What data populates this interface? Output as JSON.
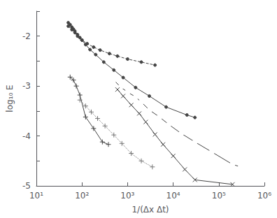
{
  "chart_data": {
    "type": "line",
    "xlabel": "1/(Δx Δt)",
    "ylabel": "log₁₀ E",
    "log": "x",
    "grid": false,
    "xlim": [
      10,
      1000000
    ],
    "xticks": [
      {
        "value": 10,
        "label": "10¹"
      },
      {
        "value": 100,
        "label": "10²"
      },
      {
        "value": 1000,
        "label": "10³"
      },
      {
        "value": 10000,
        "label": "10⁴"
      },
      {
        "value": 100000,
        "label": "10⁵"
      },
      {
        "value": 1000000,
        "label": "10⁶"
      }
    ],
    "ylim": [
      -5,
      -1.5
    ],
    "yticks": [
      -5,
      {
        "value": -4.5,
        "label": ""
      },
      -4,
      {
        "value": -3.5,
        "label": ""
      },
      -3,
      {
        "value": -2.5,
        "label": ""
      },
      -2,
      {
        "value": -1.5,
        "label": ""
      }
    ],
    "series": [
      {
        "x": [
          50,
          55,
          60,
          65,
          70,
          80,
          90,
          100,
          120,
          150,
          200,
          300,
          500,
          800,
          1500,
          3000,
          7000,
          20000,
          30000
        ],
        "values": [
          -1.73,
          -1.77,
          -1.82,
          -1.86,
          -1.9,
          -1.97,
          -2.03,
          -2.08,
          -2.17,
          -2.27,
          -2.37,
          -2.52,
          -2.68,
          -2.83,
          -3.03,
          -3.2,
          -3.42,
          -3.58,
          -3.63
        ],
        "marker": "point",
        "line_style": "solid",
        "color": "#444444"
      },
      {
        "x": [
          50,
          60,
          70,
          80,
          100,
          130,
          180,
          250,
          400,
          600,
          1000,
          2000,
          4000
        ],
        "values": [
          -1.8,
          -1.87,
          -1.93,
          -2.0,
          -2.08,
          -2.15,
          -2.22,
          -2.28,
          -2.35,
          -2.4,
          -2.46,
          -2.52,
          -2.58
        ],
        "marker": "point",
        "line_style": "dashed",
        "color": "#444444"
      },
      {
        "x": [
          500,
          700,
          1000,
          1500,
          2000,
          3000,
          5000,
          8000,
          15000,
          30000,
          70000,
          200000,
          300000
        ],
        "values": [
          -2.88,
          -3.02,
          -3.12,
          -3.22,
          -3.32,
          -3.48,
          -3.62,
          -3.77,
          -3.95,
          -4.12,
          -4.32,
          -4.57,
          -4.62
        ],
        "marker": "open_circle",
        "line_style": "solid",
        "color": "#444444"
      },
      {
        "x": [
          600,
          800,
          1200,
          1800,
          2500,
          4000,
          6000,
          10000,
          18000,
          30000,
          200000
        ],
        "values": [
          -3.07,
          -3.2,
          -3.38,
          -3.55,
          -3.72,
          -3.97,
          -4.17,
          -4.4,
          -4.67,
          -4.88,
          -4.97
        ],
        "marker": "x",
        "line_style": "solid",
        "color": "#444444"
      },
      {
        "x": [
          55,
          65,
          75,
          90,
          120,
          180,
          280,
          380
        ],
        "values": [
          -2.82,
          -2.88,
          -3.0,
          -3.18,
          -3.62,
          -3.85,
          -4.12,
          -4.17
        ],
        "marker": "plus",
        "line_style": "solid",
        "color": "#444444"
      },
      {
        "x": [
          90,
          120,
          160,
          220,
          320,
          500,
          750,
          1200,
          2000,
          3500
        ],
        "values": [
          -3.28,
          -3.4,
          -3.52,
          -3.65,
          -3.8,
          -3.98,
          -4.15,
          -4.35,
          -4.5,
          -4.62
        ],
        "marker": "plus",
        "line_style": "dotted",
        "color": "#777777"
      }
    ]
  }
}
